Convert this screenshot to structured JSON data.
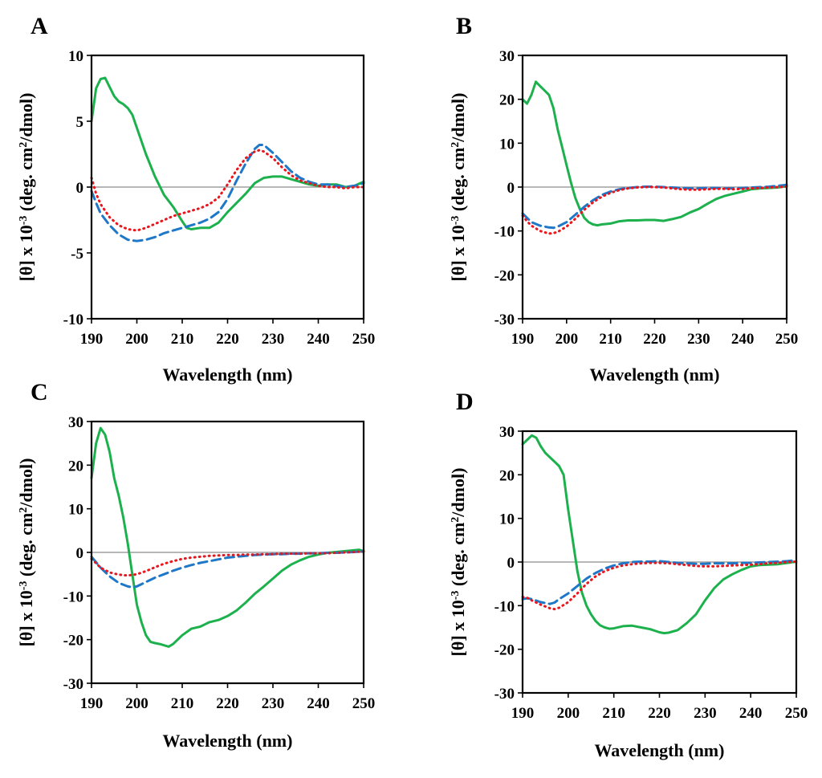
{
  "figure": {
    "colors": {
      "solid": "#1db14e",
      "dashed": "#1f77c8",
      "dotted": "#e8161d",
      "zero": "#8c8c8c"
    }
  },
  "chart_data": [
    {
      "panel": "A",
      "type": "line",
      "xlabel": "Wavelength (nm)",
      "ylabel": "[θ] x 10",
      "ylabel_exp": "-3",
      "ylabel_tail": " (deg. cm",
      "ylabel_sup": "2",
      "ylabel_end": "/dmol)",
      "xlim": [
        190,
        250
      ],
      "ylim": [
        -10,
        10
      ],
      "xticks": [
        190,
        200,
        210,
        220,
        230,
        240,
        250
      ],
      "yticks": [
        10,
        5,
        0,
        -5,
        -10
      ],
      "series": [
        {
          "name": "green-solid",
          "style": "solid",
          "color": "#1db14e",
          "x": [
            190,
            191,
            192,
            193,
            194,
            195,
            196,
            197,
            198,
            199,
            200,
            202,
            204,
            206,
            208,
            210,
            211,
            212,
            214,
            216,
            218,
            220,
            222,
            224,
            226,
            228,
            230,
            232,
            234,
            236,
            238,
            240,
            242,
            244,
            246,
            248,
            250
          ],
          "y": [
            5,
            7.5,
            8.2,
            8.3,
            7.6,
            6.9,
            6.5,
            6.3,
            6.0,
            5.5,
            4.5,
            2.5,
            0.8,
            -0.6,
            -1.5,
            -2.6,
            -3.1,
            -3.2,
            -3.1,
            -3.1,
            -2.7,
            -1.9,
            -1.2,
            -0.5,
            0.3,
            0.7,
            0.8,
            0.8,
            0.6,
            0.4,
            0.2,
            0.1,
            0.2,
            0.2,
            0.0,
            0.1,
            0.4
          ]
        },
        {
          "name": "blue-dashed",
          "style": "dashed",
          "color": "#1f77c8",
          "x": [
            190,
            191,
            192,
            194,
            196,
            198,
            200,
            202,
            204,
            206,
            208,
            210,
            212,
            214,
            216,
            218,
            220,
            222,
            224,
            226,
            227,
            228,
            230,
            232,
            234,
            236,
            238,
            240,
            242,
            244,
            246,
            248,
            250
          ],
          "y": [
            -0.3,
            -1.2,
            -2.0,
            -2.9,
            -3.6,
            -4.0,
            -4.1,
            -4.0,
            -3.8,
            -3.5,
            -3.3,
            -3.1,
            -2.9,
            -2.7,
            -2.4,
            -1.9,
            -0.9,
            0.5,
            1.8,
            2.9,
            3.2,
            3.2,
            2.6,
            1.9,
            1.2,
            0.7,
            0.4,
            0.2,
            0.2,
            0.1,
            0.0,
            0.1,
            0.3
          ]
        },
        {
          "name": "red-dotted",
          "style": "dotted",
          "color": "#e8161d",
          "x": [
            190,
            191,
            192,
            194,
            196,
            198,
            200,
            202,
            204,
            206,
            208,
            210,
            212,
            214,
            216,
            218,
            220,
            222,
            224,
            226,
            227,
            228,
            230,
            232,
            234,
            236,
            238,
            240,
            242,
            244,
            246,
            248,
            250
          ],
          "y": [
            0.7,
            -0.5,
            -1.3,
            -2.3,
            -2.9,
            -3.2,
            -3.3,
            -3.1,
            -2.8,
            -2.5,
            -2.2,
            -2.0,
            -1.8,
            -1.6,
            -1.3,
            -0.8,
            0.2,
            1.3,
            2.2,
            2.7,
            2.8,
            2.7,
            2.2,
            1.5,
            0.9,
            0.5,
            0.3,
            0.1,
            0.0,
            0.0,
            -0.1,
            0.0,
            0.0
          ]
        }
      ]
    },
    {
      "panel": "B",
      "type": "line",
      "xlabel": "Wavelength (nm)",
      "ylabel": "[θ] x 10",
      "ylabel_exp": "-3",
      "ylabel_tail": " (deg. cm",
      "ylabel_sup": "2",
      "ylabel_end": "/dmol)",
      "xlim": [
        190,
        250
      ],
      "ylim": [
        -30,
        30
      ],
      "xticks": [
        190,
        200,
        210,
        220,
        230,
        240,
        250
      ],
      "yticks": [
        30,
        20,
        10,
        0,
        -10,
        -20,
        -30
      ],
      "series": [
        {
          "name": "green-solid",
          "style": "solid",
          "color": "#1db14e",
          "x": [
            190,
            191,
            192,
            193,
            194,
            195,
            196,
            197,
            198,
            199,
            200,
            201,
            202,
            203,
            204,
            205,
            206,
            207,
            208,
            210,
            212,
            214,
            216,
            218,
            220,
            222,
            224,
            226,
            228,
            230,
            232,
            234,
            236,
            238,
            240,
            242,
            244,
            246,
            248,
            250
          ],
          "y": [
            20,
            19,
            21,
            24,
            23,
            22,
            21,
            18,
            13,
            9,
            5,
            1,
            -2.5,
            -5,
            -7,
            -8,
            -8.5,
            -8.7,
            -8.5,
            -8.3,
            -7.8,
            -7.6,
            -7.6,
            -7.5,
            -7.5,
            -7.7,
            -7.3,
            -6.8,
            -5.8,
            -5.0,
            -3.8,
            -2.7,
            -2.0,
            -1.5,
            -1.0,
            -0.5,
            -0.3,
            -0.2,
            -0.1,
            0.2
          ]
        },
        {
          "name": "blue-dashed",
          "style": "dashed",
          "color": "#1f77c8",
          "x": [
            190,
            191,
            192,
            194,
            196,
            197,
            198,
            200,
            202,
            204,
            206,
            208,
            210,
            212,
            214,
            216,
            218,
            220,
            222,
            224,
            226,
            228,
            230,
            232,
            234,
            236,
            238,
            240,
            242,
            244,
            246,
            248,
            250
          ],
          "y": [
            -6,
            -7,
            -8,
            -8.8,
            -9.2,
            -9.3,
            -9.0,
            -8.0,
            -6.3,
            -4.5,
            -3.0,
            -1.8,
            -1.0,
            -0.5,
            -0.2,
            0.0,
            0.1,
            0.1,
            0.0,
            -0.1,
            -0.2,
            -0.3,
            -0.3,
            -0.2,
            -0.2,
            -0.3,
            -0.3,
            -0.2,
            -0.1,
            0.0,
            0.1,
            0.3,
            0.5
          ]
        },
        {
          "name": "red-dotted",
          "style": "dotted",
          "color": "#e8161d",
          "x": [
            190,
            191,
            192,
            194,
            196,
            197,
            198,
            200,
            202,
            204,
            206,
            208,
            210,
            212,
            214,
            216,
            218,
            220,
            222,
            224,
            226,
            228,
            230,
            232,
            234,
            236,
            238,
            240,
            242,
            244,
            246,
            248,
            250
          ],
          "y": [
            -6.5,
            -7.8,
            -8.8,
            -10,
            -10.6,
            -10.5,
            -10.2,
            -9.0,
            -7.2,
            -5.2,
            -3.5,
            -2.2,
            -1.3,
            -0.7,
            -0.3,
            -0.1,
            0.0,
            0.0,
            -0.1,
            -0.3,
            -0.5,
            -0.6,
            -0.6,
            -0.5,
            -0.4,
            -0.4,
            -0.5,
            -0.4,
            -0.3,
            -0.2,
            -0.1,
            0.0,
            0.1
          ]
        }
      ]
    },
    {
      "panel": "C",
      "type": "line",
      "xlabel": "Wavelength (nm)",
      "ylabel": "[θ] x 10",
      "ylabel_exp": "-3",
      "ylabel_tail": " (deg. cm",
      "ylabel_sup": "2",
      "ylabel_end": "/dmol)",
      "xlim": [
        190,
        250
      ],
      "ylim": [
        -30,
        30
      ],
      "xticks": [
        190,
        200,
        210,
        220,
        230,
        240,
        250
      ],
      "yticks": [
        30,
        20,
        10,
        0,
        -10,
        -20,
        -30
      ],
      "series": [
        {
          "name": "green-solid",
          "style": "solid",
          "color": "#1db14e",
          "x": [
            190,
            191,
            192,
            193,
            194,
            195,
            196,
            197,
            198,
            199,
            200,
            201,
            202,
            203,
            204,
            205,
            206,
            207,
            208,
            210,
            212,
            214,
            216,
            218,
            220,
            222,
            224,
            226,
            228,
            230,
            232,
            234,
            236,
            238,
            240,
            242,
            244,
            246,
            248,
            249,
            250
          ],
          "y": [
            17,
            25,
            28.5,
            27,
            23,
            17,
            13,
            8,
            2,
            -5,
            -12,
            -16,
            -19,
            -20.5,
            -20.8,
            -21,
            -21.3,
            -21.6,
            -21,
            -19,
            -17.5,
            -17,
            -16,
            -15.5,
            -14.6,
            -13.3,
            -11.5,
            -9.5,
            -7.8,
            -6,
            -4.2,
            -2.8,
            -1.8,
            -1,
            -0.5,
            -0.1,
            0.1,
            0.3,
            0.5,
            0.6,
            0.3
          ]
        },
        {
          "name": "blue-dashed",
          "style": "dashed",
          "color": "#1f77c8",
          "x": [
            190,
            192,
            194,
            196,
            198,
            199,
            200,
            202,
            204,
            206,
            208,
            210,
            212,
            214,
            216,
            218,
            220,
            222,
            224,
            226,
            228,
            230,
            232,
            234,
            236,
            238,
            240,
            242,
            244,
            246,
            248,
            250
          ],
          "y": [
            -1,
            -3.5,
            -5.5,
            -7,
            -7.8,
            -8.0,
            -7.8,
            -6.8,
            -5.8,
            -5.0,
            -4.2,
            -3.5,
            -2.9,
            -2.4,
            -2.0,
            -1.6,
            -1.2,
            -1.0,
            -0.8,
            -0.6,
            -0.5,
            -0.4,
            -0.4,
            -0.3,
            -0.3,
            -0.2,
            -0.2,
            -0.1,
            -0.1,
            0.0,
            0.1,
            0.3
          ]
        },
        {
          "name": "red-dotted",
          "style": "dotted",
          "color": "#e8161d",
          "x": [
            190,
            192,
            194,
            196,
            198,
            200,
            202,
            204,
            206,
            208,
            210,
            212,
            214,
            216,
            218,
            220,
            222,
            224,
            226,
            228,
            230,
            232,
            234,
            236,
            238,
            240,
            242,
            244,
            246,
            248,
            250
          ],
          "y": [
            -1.5,
            -3.5,
            -4.6,
            -5.1,
            -5.3,
            -5.0,
            -4.3,
            -3.4,
            -2.6,
            -2.0,
            -1.5,
            -1.2,
            -1.0,
            -0.8,
            -0.7,
            -0.6,
            -0.6,
            -0.5,
            -0.5,
            -0.4,
            -0.4,
            -0.3,
            -0.3,
            -0.3,
            -0.2,
            -0.2,
            -0.2,
            -0.1,
            0.0,
            0.1,
            0.2
          ]
        }
      ]
    },
    {
      "panel": "D",
      "type": "line",
      "xlabel": "Wavelength (nm)",
      "ylabel": "[θ] x 10",
      "ylabel_exp": "-3",
      "ylabel_tail": " (deg. cm",
      "ylabel_sup": "2",
      "ylabel_end": "/dmol)",
      "xlim": [
        190,
        250
      ],
      "ylim": [
        -30,
        30
      ],
      "xticks": [
        190,
        200,
        210,
        220,
        230,
        240,
        250
      ],
      "yticks": [
        30,
        20,
        10,
        0,
        -10,
        -20,
        -30
      ],
      "series": [
        {
          "name": "green-solid",
          "style": "solid",
          "color": "#1db14e",
          "x": [
            190,
            191,
            192,
            193,
            194,
            195,
            196,
            197,
            198,
            199,
            200,
            201,
            202,
            203,
            204,
            205,
            206,
            207,
            208,
            209,
            210,
            212,
            214,
            216,
            218,
            220,
            221,
            222,
            224,
            226,
            228,
            230,
            232,
            234,
            236,
            238,
            240,
            242,
            244,
            246,
            248,
            250
          ],
          "y": [
            27,
            28,
            29,
            28.5,
            26.5,
            25,
            24,
            23,
            22,
            20,
            12,
            5,
            -2,
            -7,
            -10,
            -12,
            -13.5,
            -14.5,
            -15,
            -15.3,
            -15.2,
            -14.7,
            -14.6,
            -15,
            -15.4,
            -16.1,
            -16.3,
            -16.2,
            -15.6,
            -14,
            -12,
            -8.8,
            -6,
            -4,
            -2.8,
            -1.8,
            -1.0,
            -0.7,
            -0.6,
            -0.5,
            -0.2,
            0.1
          ]
        },
        {
          "name": "blue-dashed",
          "style": "dashed",
          "color": "#1f77c8",
          "x": [
            190,
            191,
            192,
            194,
            196,
            197,
            198,
            200,
            202,
            204,
            206,
            208,
            210,
            212,
            214,
            216,
            218,
            220,
            222,
            224,
            226,
            228,
            230,
            232,
            234,
            236,
            238,
            240,
            242,
            244,
            246,
            248,
            250
          ],
          "y": [
            -8.5,
            -8.3,
            -8.5,
            -9.2,
            -9.6,
            -9.3,
            -8.5,
            -7.2,
            -5.5,
            -3.8,
            -2.5,
            -1.5,
            -0.8,
            -0.3,
            0.0,
            0.1,
            0.1,
            0.2,
            0.0,
            -0.2,
            -0.3,
            -0.4,
            -0.4,
            -0.3,
            -0.3,
            -0.3,
            -0.2,
            -0.2,
            -0.1,
            0.0,
            0.1,
            0.2,
            0.4
          ]
        },
        {
          "name": "red-dotted",
          "style": "dotted",
          "color": "#e8161d",
          "x": [
            190,
            191,
            192,
            194,
            196,
            197,
            198,
            200,
            202,
            204,
            206,
            208,
            210,
            212,
            214,
            216,
            218,
            220,
            222,
            224,
            226,
            228,
            230,
            232,
            234,
            236,
            238,
            240,
            242,
            244,
            246,
            248,
            250
          ],
          "y": [
            -8.0,
            -8.2,
            -8.8,
            -9.8,
            -10.6,
            -10.8,
            -10.5,
            -9.2,
            -7.2,
            -5.0,
            -3.3,
            -2.1,
            -1.3,
            -0.8,
            -0.5,
            -0.3,
            -0.2,
            -0.2,
            -0.3,
            -0.5,
            -0.7,
            -0.9,
            -1.0,
            -1.0,
            -0.9,
            -0.8,
            -0.7,
            -0.6,
            -0.5,
            -0.3,
            -0.2,
            0.0,
            0.1
          ]
        }
      ]
    }
  ]
}
